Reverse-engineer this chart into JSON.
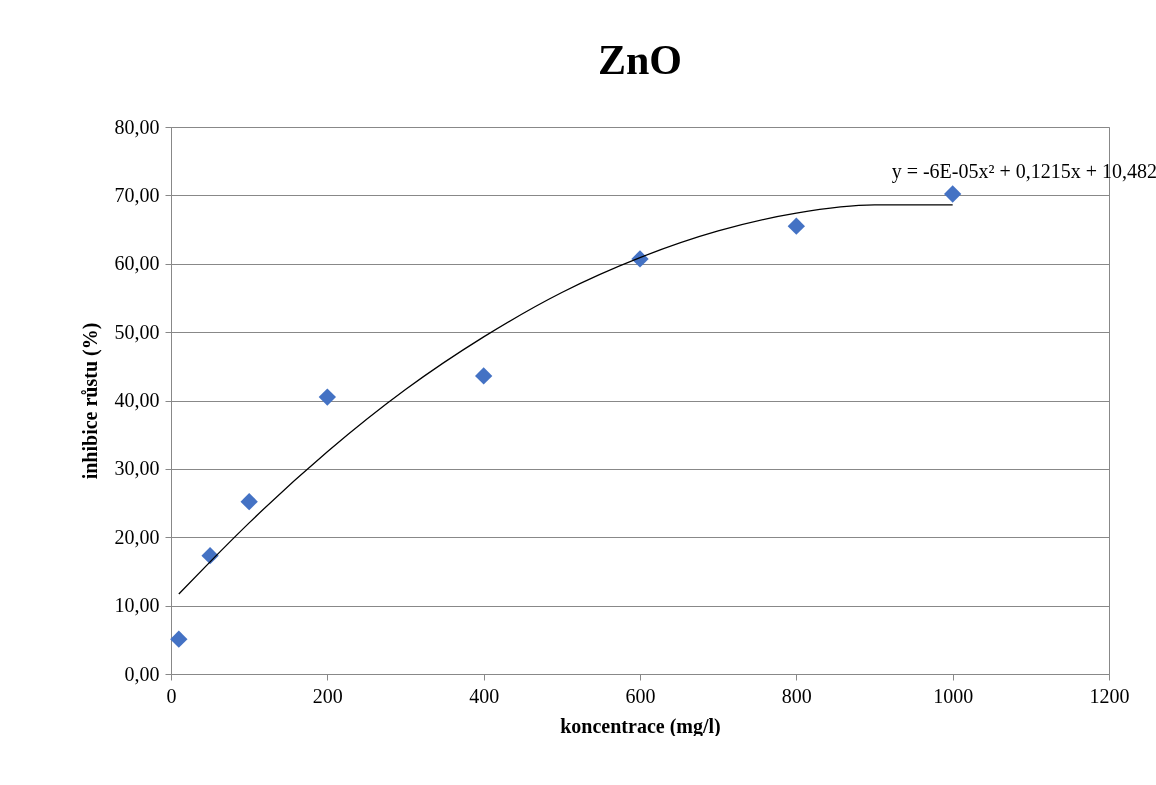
{
  "chart_data": {
    "type": "scatter",
    "title": "ZnO",
    "xlabel": "koncentrace (mg/l)",
    "ylabel": "inhibice růstu (%)",
    "xlim": [
      0,
      1200
    ],
    "xticks": [
      0,
      200,
      400,
      600,
      800,
      1000,
      1200
    ],
    "ylim": [
      0,
      80
    ],
    "yticks": [
      {
        "value": 0,
        "label": "0,00"
      },
      {
        "value": 10,
        "label": "10,00"
      },
      {
        "value": 20,
        "label": "20,00"
      },
      {
        "value": 30,
        "label": "30,00"
      },
      {
        "value": 40,
        "label": "40,00"
      },
      {
        "value": 50,
        "label": "50,00"
      },
      {
        "value": 60,
        "label": "60,00"
      },
      {
        "value": 70,
        "label": "70,00"
      },
      {
        "value": 80,
        "label": "80,00"
      }
    ],
    "grid": "y",
    "marker": "diamond",
    "series": [
      {
        "color": "#4472c4",
        "x": [
          10,
          50,
          100,
          200,
          400,
          600,
          800,
          1000
        ],
        "values": [
          5.1,
          17.3,
          25.2,
          40.5,
          43.6,
          60.7,
          65.5,
          70.2
        ]
      },
      {
        "type": "line",
        "color": "#000000",
        "marker": "none",
        "line_style": "solid",
        "x": [
          10,
          50,
          100,
          200,
          300,
          400,
          500,
          600,
          700,
          800,
          900,
          1000
        ],
        "values": [
          11.7,
          16.4,
          22.1,
          32.5,
          41.6,
          49.3,
          55.8,
          60.9,
          64.8,
          67.4,
          68.6,
          68.6
        ]
      }
    ],
    "annotations": [
      "y = -6E-05x² + 0,1215x + 10,482"
    ]
  }
}
